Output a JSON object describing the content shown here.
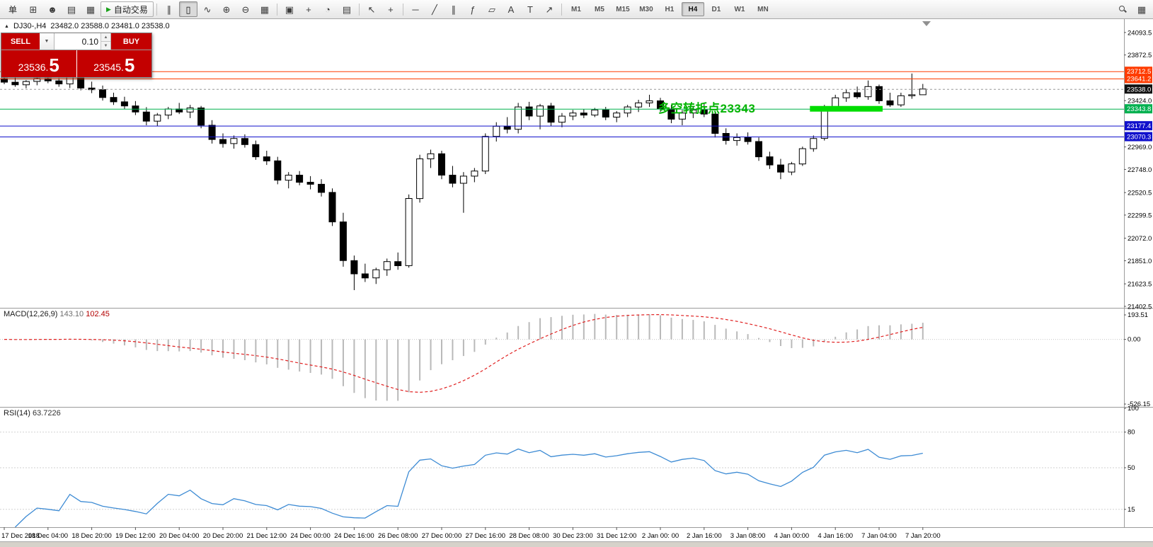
{
  "colors": {
    "trade_red": "#c30000",
    "annotation_green": "#00b300",
    "rsi_line": "#3d8bd4",
    "macd_signal": "#e02020",
    "macd_histogram": "#b9b9b9",
    "candle_outline": "#000000"
  },
  "toolbar": {
    "new_order_label": "单",
    "autotrade_label": "自动交易",
    "icons_left": [
      {
        "name": "new-chart-icon",
        "glyph": "⊞"
      },
      {
        "name": "profile-icon",
        "glyph": "☻"
      },
      {
        "name": "market-watch-icon",
        "glyph": "▤"
      },
      {
        "name": "navigator-icon",
        "glyph": "▦"
      }
    ],
    "icons_chart": [
      {
        "name": "bar-chart-icon",
        "glyph": "∥"
      },
      {
        "name": "candlestick-chart-icon",
        "glyph": "▯"
      },
      {
        "name": "line-chart-icon",
        "glyph": "∿"
      }
    ],
    "icons_zoom": [
      {
        "name": "zoom-in-icon",
        "glyph": "⊕"
      },
      {
        "name": "zoom-out-icon",
        "glyph": "⊖"
      },
      {
        "name": "grid-icon",
        "glyph": "▦"
      }
    ],
    "icons_window": [
      {
        "name": "tile-windows-icon",
        "glyph": "▣"
      },
      {
        "name": "indicators-icon",
        "glyph": "+"
      },
      {
        "name": "periods-icon",
        "glyph": "◔"
      },
      {
        "name": "templates-icon",
        "glyph": "▤"
      }
    ],
    "icons_cursor": [
      {
        "name": "cursor-icon",
        "glyph": "↖"
      },
      {
        "name": "crosshair-icon",
        "glyph": "+"
      }
    ],
    "icons_draw": [
      {
        "name": "horizontal-line-icon",
        "glyph": "─"
      },
      {
        "name": "trendline-icon",
        "glyph": "╱"
      },
      {
        "name": "channel-icon",
        "glyph": "∥"
      },
      {
        "name": "fibonacci-icon",
        "glyph": "ƒ"
      },
      {
        "name": "shapes-icon",
        "glyph": "▱"
      },
      {
        "name": "text-icon",
        "glyph": "A"
      },
      {
        "name": "label-icon",
        "glyph": "T"
      },
      {
        "name": "arrows-icon",
        "glyph": "↗"
      }
    ],
    "timeframes": [
      "M1",
      "M5",
      "M15",
      "M30",
      "H1",
      "H4",
      "D1",
      "W1",
      "MN"
    ],
    "active_timeframe": "H4",
    "icons_right": [
      {
        "name": "search-icon",
        "shape": "magnifier"
      },
      {
        "name": "workspace-icon",
        "glyph": "▦"
      }
    ]
  },
  "chart_header": {
    "marker": "▲",
    "symbol": "DJ30-,H4",
    "ohlc": "23482.0 23588.0 23481.0 23538.0"
  },
  "trade_panel": {
    "sell_label": "SELL",
    "buy_label": "BUY",
    "volume": "0.10",
    "dropdown_icon": "▼",
    "spin_up": "▲",
    "spin_down": "▼",
    "sell_price_main": "23536.",
    "sell_price_big": "5",
    "buy_price_main": "23545.",
    "buy_price_big": "5"
  },
  "annotation": {
    "text": "多空转折点23343",
    "color": "#00b300"
  },
  "levels": [
    {
      "name": "resistance-1",
      "price": 23712.5,
      "label": "23712.5",
      "color": "#ff3c00",
      "line": "solid"
    },
    {
      "name": "resistance-2",
      "price": 23641.2,
      "label": "23641.2",
      "color": "#ff3c00",
      "line": "solid"
    },
    {
      "name": "current-price",
      "price": 23538.0,
      "label": "23538.0",
      "color": "#111111",
      "line": "dashed",
      "line_color": "#999999"
    },
    {
      "name": "pivot-green",
      "price": 23343.8,
      "label": "23343.8",
      "color": "#00b04f",
      "line": "solid",
      "highlight": {
        "from_bar": 74,
        "to_bar": 80,
        "color": "#00dd00",
        "thickness": 8
      }
    },
    {
      "name": "support-1",
      "price": 23177.4,
      "label": "23177.4",
      "color": "#1111cc",
      "line": "solid"
    },
    {
      "name": "support-2",
      "price": 23070.3,
      "label": "23070.3",
      "color": "#1111cc",
      "line": "solid"
    }
  ],
  "main_axis_ticks": [
    "24093.5",
    "23872.5",
    "23424.0",
    "22969.0",
    "22748.0",
    "22520.5",
    "22299.5",
    "22072.0",
    "21851.0",
    "21623.5",
    "21402.5"
  ],
  "macd": {
    "name": "MACD(12,26,9)",
    "value_main": "143.10",
    "value_signal": "102.45",
    "params": [
      12,
      26,
      9
    ],
    "ticks": [
      {
        "label": "193.51",
        "value": 193.51
      },
      {
        "label": "0.00",
        "value": 0
      },
      {
        "label": "-526.15",
        "value": -526.15
      }
    ]
  },
  "rsi": {
    "name": "RSI(14)",
    "value": "63.7226",
    "params": [
      14
    ],
    "ticks": [
      {
        "label": "100",
        "value": 100
      },
      {
        "label": "80",
        "value": 80
      },
      {
        "label": "50",
        "value": 50
      },
      {
        "label": "15",
        "value": 15
      }
    ],
    "levels": [
      80,
      50,
      15
    ]
  },
  "time_labels": [
    {
      "bar": 0,
      "label": "17 Dec 2018"
    },
    {
      "bar": 4,
      "label": "18 Dec 04:00"
    },
    {
      "bar": 8,
      "label": "18 Dec 20:00"
    },
    {
      "bar": 12,
      "label": "19 Dec 12:00"
    },
    {
      "bar": 16,
      "label": "20 Dec 04:00"
    },
    {
      "bar": 20,
      "label": "20 Dec 20:00"
    },
    {
      "bar": 24,
      "label": "21 Dec 12:00"
    },
    {
      "bar": 28,
      "label": "24 Dec 00:00"
    },
    {
      "bar": 32,
      "label": "24 Dec 16:00"
    },
    {
      "bar": 36,
      "label": "26 Dec 08:00"
    },
    {
      "bar": 40,
      "label": "27 Dec 00:00"
    },
    {
      "bar": 44,
      "label": "27 Dec 16:00"
    },
    {
      "bar": 48,
      "label": "28 Dec 08:00"
    },
    {
      "bar": 52,
      "label": "30 Dec 23:00"
    },
    {
      "bar": 56,
      "label": "31 Dec 12:00"
    },
    {
      "bar": 60,
      "label": "2 Jan 00: 00"
    },
    {
      "bar": 64,
      "label": "2 Jan 16:00"
    },
    {
      "bar": 68,
      "label": "3 Jan 08:00"
    },
    {
      "bar": 72,
      "label": "4 Jan 00:00"
    },
    {
      "bar": 76,
      "label": "4 Jan 16:00"
    },
    {
      "bar": 80,
      "label": "7 Jan 04:00"
    },
    {
      "bar": 84,
      "label": "7 Jan 20:00"
    }
  ],
  "chart_data": {
    "type": "candlestick",
    "symbol": "DJ30-",
    "timeframe": "H4",
    "ohlc_current": {
      "open": 23482.0,
      "high": 23588.0,
      "low": 23481.0,
      "close": 23538.0
    },
    "y_range": [
      21388,
      24225
    ],
    "candles": [
      [
        23640,
        23695,
        23585,
        23605
      ],
      [
        23605,
        23650,
        23560,
        23580
      ],
      [
        23580,
        23625,
        23545,
        23612
      ],
      [
        23612,
        23660,
        23575,
        23640
      ],
      [
        23640,
        23672,
        23595,
        23618
      ],
      [
        23618,
        23645,
        23560,
        23588
      ],
      [
        23588,
        23668,
        23548,
        23652
      ],
      [
        23652,
        23685,
        23525,
        23548
      ],
      [
        23548,
        23610,
        23498,
        23532
      ],
      [
        23532,
        23572,
        23425,
        23455
      ],
      [
        23455,
        23502,
        23382,
        23412
      ],
      [
        23412,
        23462,
        23340,
        23372
      ],
      [
        23372,
        23420,
        23282,
        23312
      ],
      [
        23312,
        23360,
        23182,
        23222
      ],
      [
        23222,
        23302,
        23172,
        23282
      ],
      [
        23282,
        23362,
        23242,
        23342
      ],
      [
        23342,
        23402,
        23292,
        23312
      ],
      [
        23312,
        23382,
        23252,
        23352
      ],
      [
        23352,
        23372,
        23152,
        23182
      ],
      [
        23182,
        23232,
        23002,
        23042
      ],
      [
        23042,
        23102,
        22962,
        23002
      ],
      [
        23002,
        23082,
        22952,
        23052
      ],
      [
        23052,
        23092,
        22962,
        22992
      ],
      [
        22992,
        23032,
        22842,
        22872
      ],
      [
        22872,
        22932,
        22792,
        22832
      ],
      [
        22832,
        22872,
        22602,
        22642
      ],
      [
        22642,
        22722,
        22562,
        22692
      ],
      [
        22692,
        22732,
        22592,
        22622
      ],
      [
        22622,
        22682,
        22552,
        22602
      ],
      [
        22602,
        22652,
        22482,
        22522
      ],
      [
        22522,
        22562,
        22192,
        22232
      ],
      [
        22232,
        22322,
        21792,
        21852
      ],
      [
        21852,
        21902,
        21562,
        21722
      ],
      [
        21722,
        21822,
        21642,
        21682
      ],
      [
        21682,
        21782,
        21622,
        21762
      ],
      [
        21762,
        21872,
        21702,
        21842
      ],
      [
        21842,
        21932,
        21762,
        21802
      ],
      [
        21802,
        22502,
        21782,
        22462
      ],
      [
        22462,
        22892,
        22422,
        22852
      ],
      [
        22852,
        22942,
        22762,
        22902
      ],
      [
        22902,
        22932,
        22652,
        22692
      ],
      [
        22692,
        22782,
        22572,
        22612
      ],
      [
        22612,
        22722,
        22322,
        22682
      ],
      [
        22682,
        22762,
        22622,
        22732
      ],
      [
        22732,
        23102,
        22702,
        23072
      ],
      [
        23072,
        23212,
        23022,
        23172
      ],
      [
        23172,
        23262,
        23102,
        23142
      ],
      [
        23142,
        23402,
        23102,
        23362
      ],
      [
        23362,
        23412,
        23232,
        23272
      ],
      [
        23272,
        23392,
        23142,
        23372
      ],
      [
        23372,
        23402,
        23172,
        23212
      ],
      [
        23212,
        23302,
        23162,
        23272
      ],
      [
        23272,
        23332,
        23232,
        23302
      ],
      [
        23302,
        23342,
        23252,
        23282
      ],
      [
        23282,
        23352,
        23262,
        23332
      ],
      [
        23332,
        23362,
        23232,
        23262
      ],
      [
        23262,
        23322,
        23212,
        23302
      ],
      [
        23302,
        23382,
        23262,
        23362
      ],
      [
        23362,
        23432,
        23312,
        23402
      ],
      [
        23402,
        23482,
        23362,
        23422
      ],
      [
        23422,
        23452,
        23312,
        23342
      ],
      [
        23342,
        23382,
        23202,
        23242
      ],
      [
        23242,
        23332,
        23182,
        23302
      ],
      [
        23302,
        23372,
        23252,
        23332
      ],
      [
        23332,
        23392,
        23262,
        23292
      ],
      [
        23292,
        23322,
        23062,
        23102
      ],
      [
        23102,
        23152,
        22992,
        23032
      ],
      [
        23032,
        23102,
        22982,
        23062
      ],
      [
        23062,
        23112,
        22992,
        23022
      ],
      [
        23022,
        23062,
        22832,
        22872
      ],
      [
        22872,
        22922,
        22752,
        22792
      ],
      [
        22792,
        22852,
        22652,
        22722
      ],
      [
        22722,
        22822,
        22692,
        22802
      ],
      [
        22802,
        22972,
        22782,
        22952
      ],
      [
        22952,
        23082,
        22922,
        23052
      ],
      [
        23052,
        23382,
        23032,
        23352
      ],
      [
        23352,
        23482,
        23322,
        23452
      ],
      [
        23452,
        23532,
        23412,
        23502
      ],
      [
        23502,
        23562,
        23442,
        23462
      ],
      [
        23462,
        23622,
        23432,
        23562
      ],
      [
        23562,
        23582,
        23392,
        23422
      ],
      [
        23422,
        23502,
        23362,
        23382
      ],
      [
        23382,
        23502,
        23362,
        23472
      ],
      [
        23472,
        23690,
        23442,
        23482
      ],
      [
        23482,
        23588,
        23481,
        23538
      ]
    ]
  }
}
